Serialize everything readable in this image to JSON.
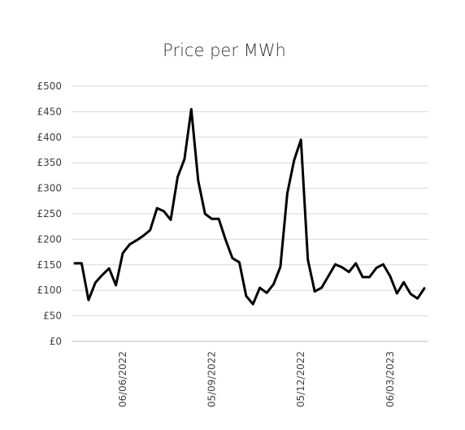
{
  "chart_data": {
    "type": "line",
    "title": "Price per MWh",
    "xlabel": "",
    "ylabel": "",
    "ylim": [
      0,
      500
    ],
    "yticks": [
      "£0",
      "£50",
      "£100",
      "£150",
      "£200",
      "£250",
      "£300",
      "£350",
      "£400",
      "£450",
      "£500"
    ],
    "xtick_labels": [
      "06/06/2022",
      "05/09/2022",
      "05/12/2022",
      "06/03/2023"
    ],
    "xtick_positions": [
      7,
      20,
      33,
      46
    ],
    "grid": true,
    "legend": "none",
    "colors": {
      "line": "#000000",
      "grid": "#d9d9d9"
    },
    "series": [
      {
        "values": [
          153,
          153,
          81,
          115,
          130,
          143,
          110,
          173,
          190,
          198,
          207,
          218,
          261,
          255,
          238,
          322,
          357,
          455,
          315,
          250,
          240,
          240,
          199,
          163,
          155,
          89,
          73,
          105,
          95,
          112,
          146,
          290,
          355,
          395,
          160,
          98,
          105,
          128,
          151,
          145,
          136,
          153,
          126,
          126,
          144,
          151,
          128,
          94,
          116,
          93,
          84,
          104
        ]
      }
    ]
  }
}
